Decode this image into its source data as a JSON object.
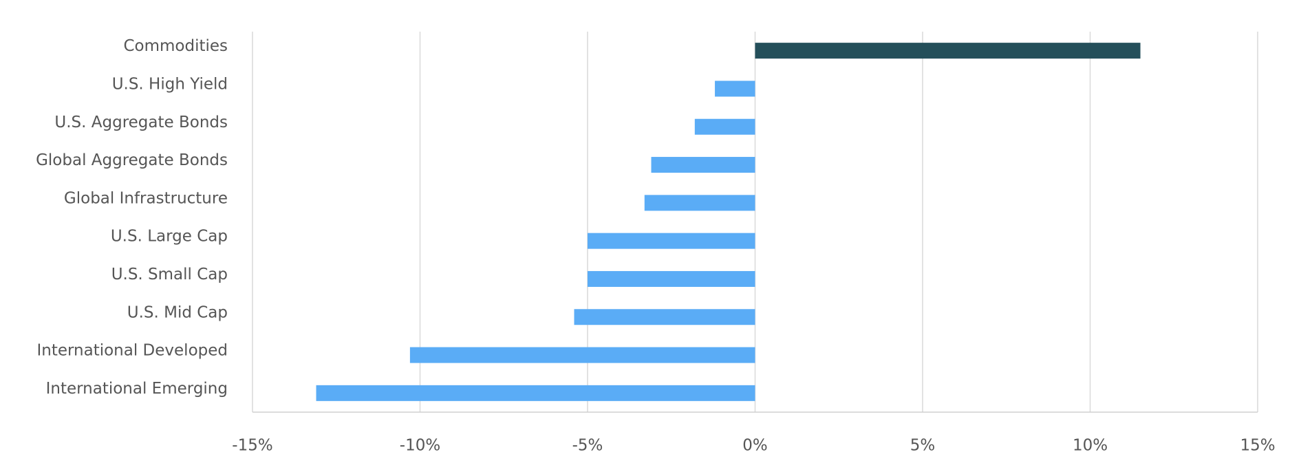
{
  "chart_data": {
    "type": "hbar",
    "categories": [
      "Commodities",
      "U.S. High Yield",
      "U.S. Aggregate Bonds",
      "Global Aggregate Bonds",
      "Global Infrastructure",
      "U.S. Large Cap",
      "U.S. Small Cap",
      "U.S. Mid Cap",
      "International Developed",
      "International Emerging"
    ],
    "values": [
      11.5,
      -1.2,
      -1.8,
      -3.1,
      -3.3,
      -5.0,
      -5.0,
      -5.4,
      -10.3,
      -13.1
    ],
    "colors": [
      "#244f5a",
      "#5aacf6",
      "#5aacf6",
      "#5aacf6",
      "#5aacf6",
      "#5aacf6",
      "#5aacf6",
      "#5aacf6",
      "#5aacf6",
      "#5aacf6"
    ],
    "xlim": [
      -15,
      15
    ],
    "xticks": [
      {
        "value": -15,
        "label": "-15%"
      },
      {
        "value": -10,
        "label": "-10%"
      },
      {
        "value": -5,
        "label": "-5%"
      },
      {
        "value": 0,
        "label": "0%"
      },
      {
        "value": 5,
        "label": "5%"
      },
      {
        "value": 10,
        "label": "10%"
      },
      {
        "value": 15,
        "label": "15%"
      }
    ],
    "grid": true
  }
}
